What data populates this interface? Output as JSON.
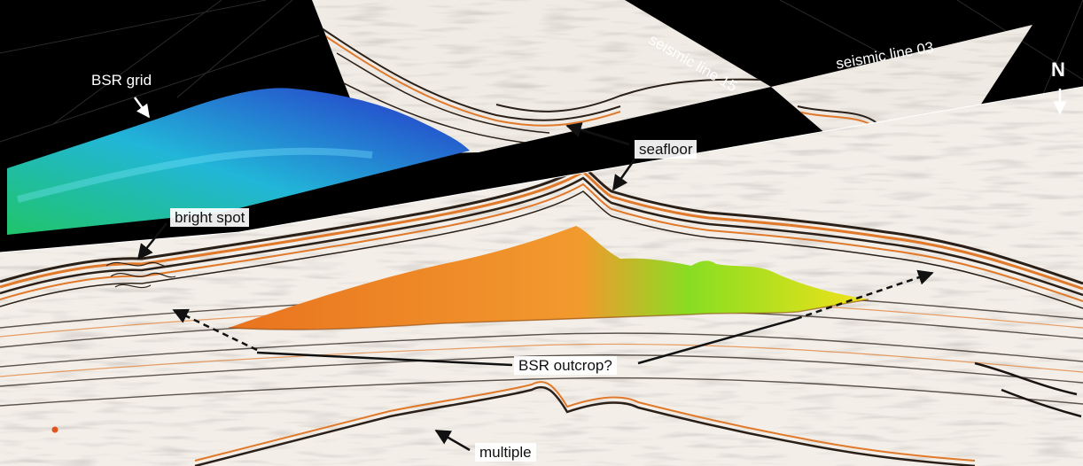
{
  "labels": {
    "bsr_grid": "BSR grid",
    "seismic_line_15": "seismic line 15",
    "seismic_line_03": "seismic line 03",
    "north": "N",
    "seafloor": "seafloor",
    "bright_spot": "bright spot",
    "bsr_outcrop": "BSR outcrop?",
    "multiple": "multiple"
  },
  "colors": {
    "background": "#000000",
    "seismic_base": "#f2ede7",
    "reflector_dark": "#2a2018",
    "reflector_orange": "#e0792a",
    "bsr_grid_deep": "#2630c8",
    "bsr_grid_mid": "#22b6d8",
    "bsr_grid_shallow": "#1fc46a",
    "bsr_surface_orange": "#f08a26",
    "bsr_surface_green": "#88dd22",
    "bsr_surface_yellow": "#f2e21a"
  }
}
